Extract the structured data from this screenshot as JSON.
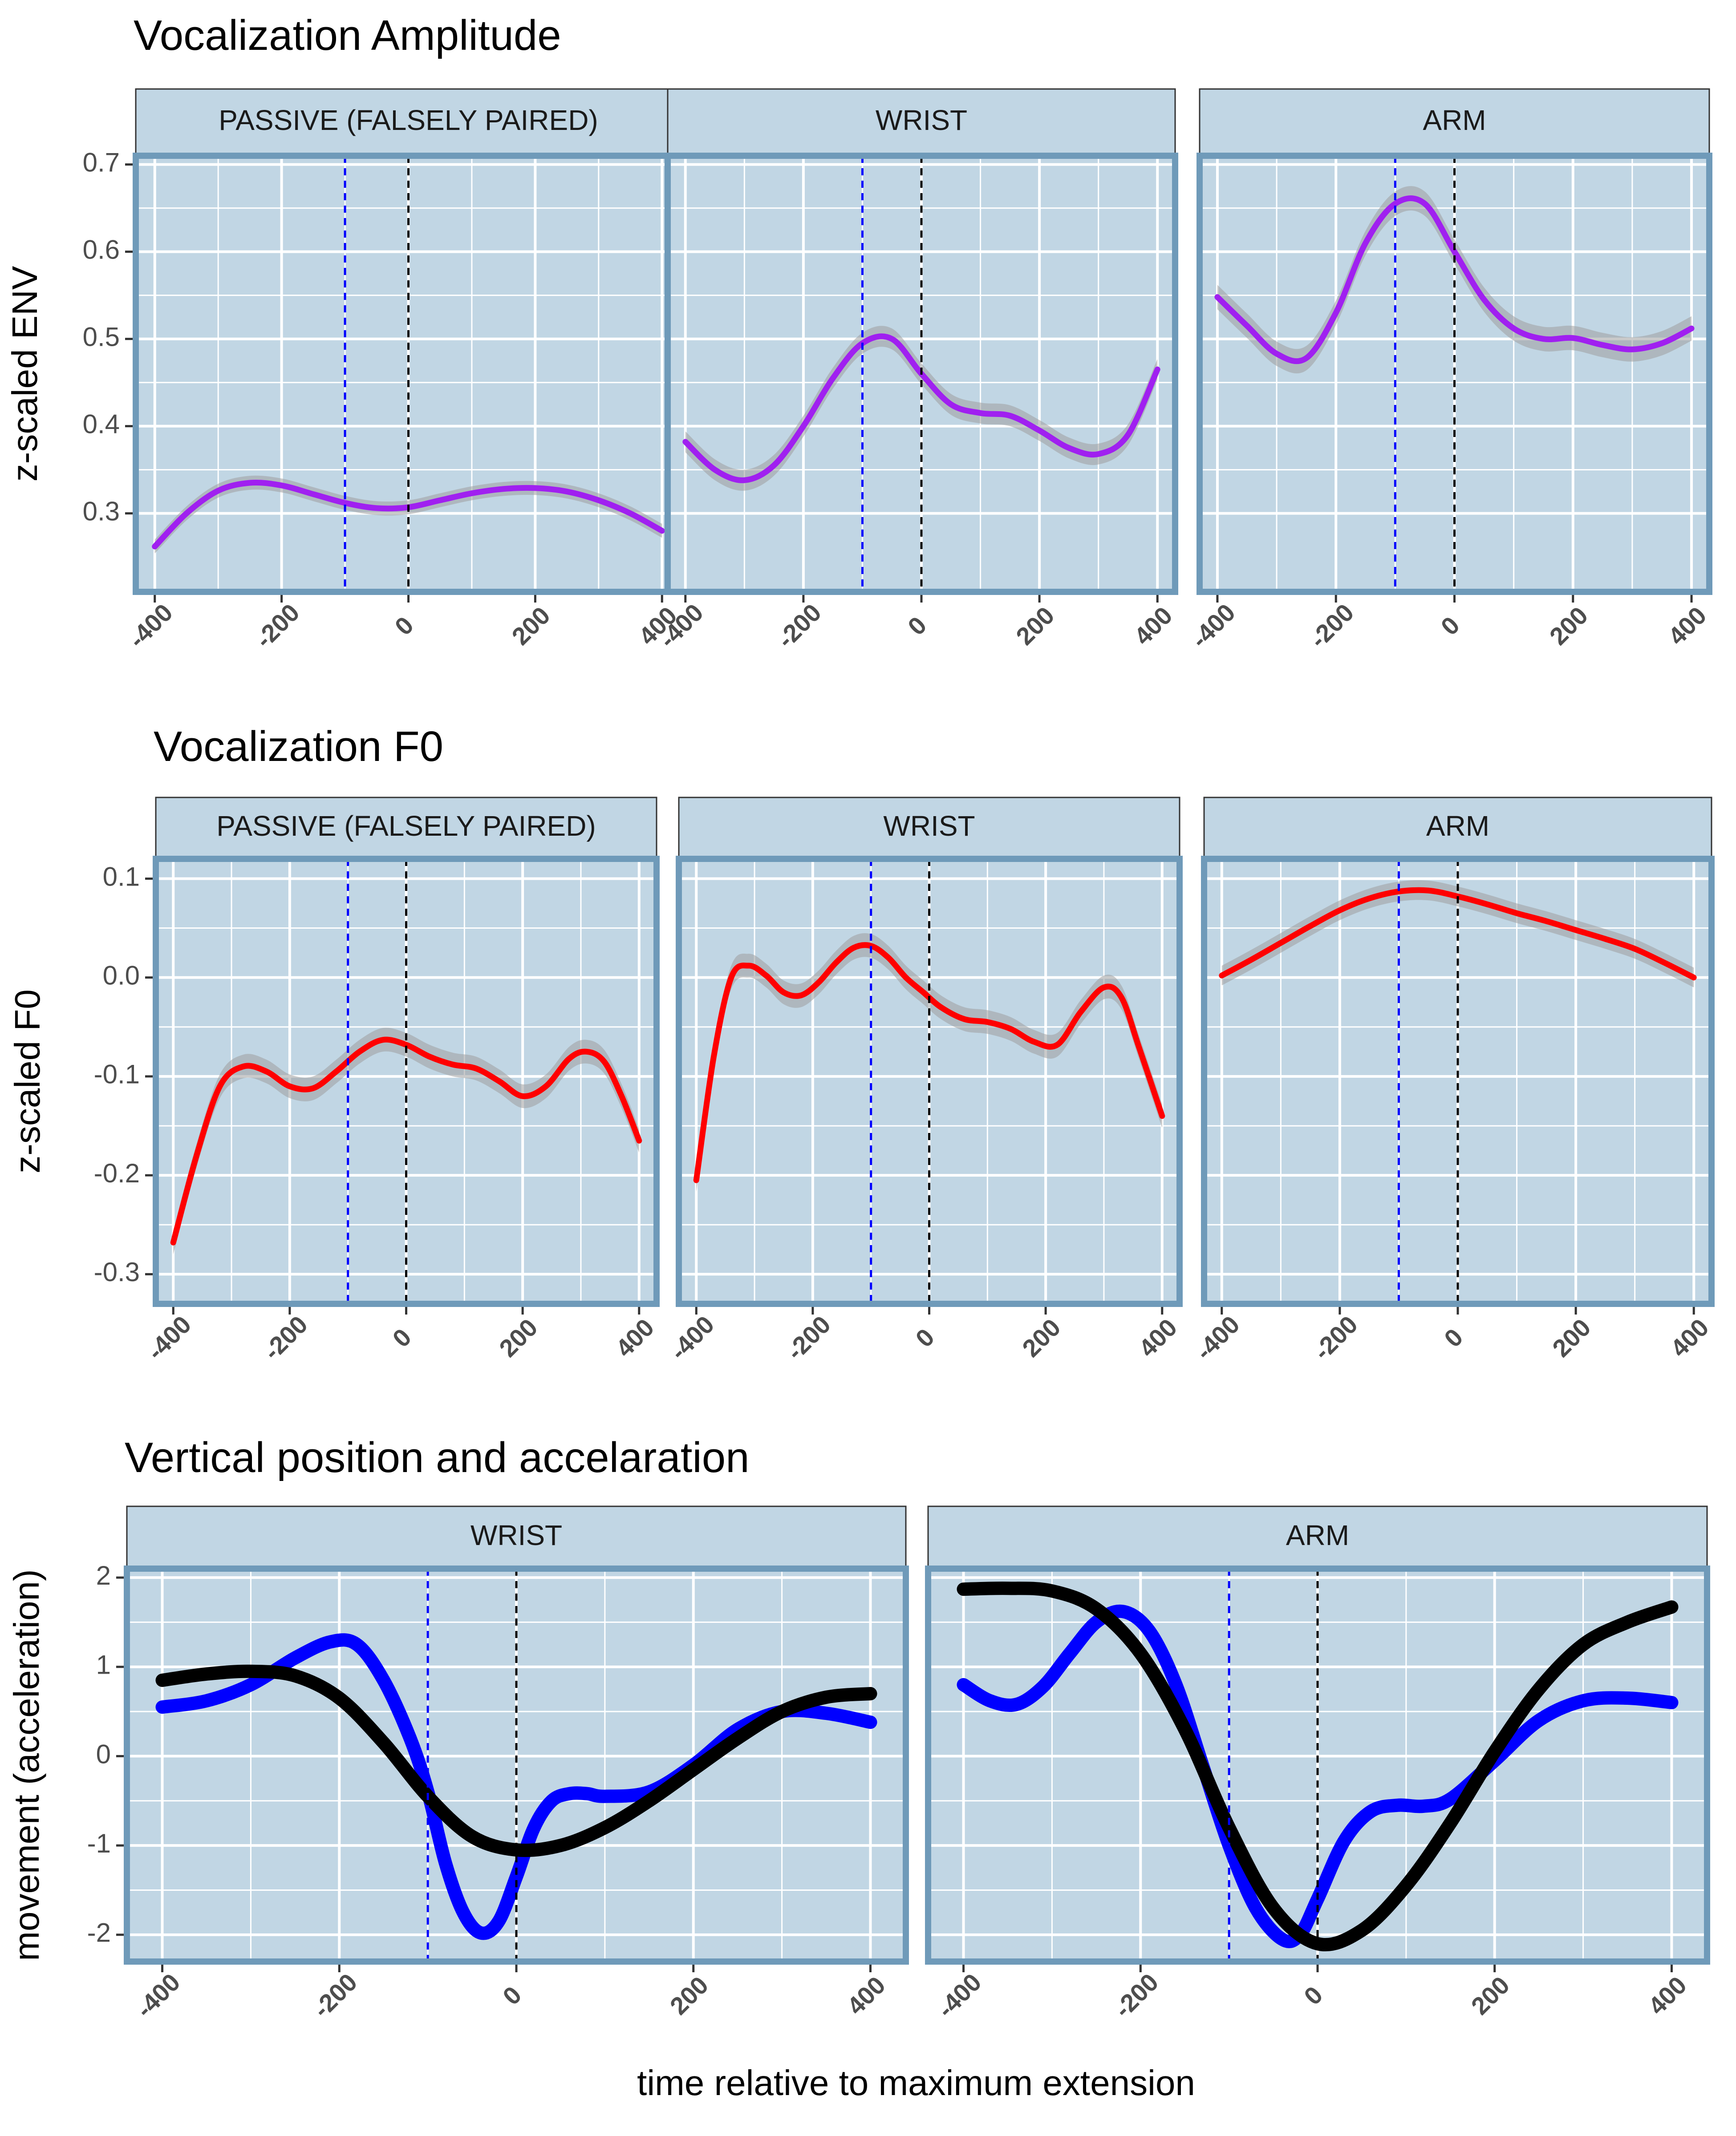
{
  "figure": {
    "xlabel": "time relative to maximum extension"
  },
  "colors": {
    "panel_bg": "#c1d6e4",
    "panel_border": "#6f9ab9",
    "strip_bg": "#c1d6e4",
    "grid": "#ffffff",
    "ribbon": "#9e9e9e",
    "envelope_line": "#a020f0",
    "f0_line": "#ff0000",
    "acceleration_line": "#0000ff",
    "position_line": "#000000",
    "marker_max_extension": "#000000",
    "marker_offset": "#0000ff"
  },
  "chart_data": [
    {
      "type": "line",
      "title": "Vocalization Amplitude",
      "ylabel": "z-scaled ENV",
      "xlabel": "",
      "xlim": [
        -430,
        430
      ],
      "ylim": [
        0.21,
        0.71
      ],
      "x_ticks": [
        -400,
        -200,
        0,
        200,
        400
      ],
      "y_ticks": [
        0.3,
        0.4,
        0.5,
        0.6,
        0.7
      ],
      "y_tick_labels": [
        "0.3",
        "0.4",
        "0.5",
        "0.6",
        "0.7"
      ],
      "vertical_lines": [
        {
          "x": -100,
          "color": "blue",
          "style": "dashed"
        },
        {
          "x": 0,
          "color": "black",
          "style": "dashed"
        }
      ],
      "grid": true,
      "facets": [
        {
          "label": "PASSIVE (FALSELY PAIRED)",
          "series": [
            {
              "color": "purple",
              "ribbon": 0.008,
              "x": [
                -400,
                -350,
                -300,
                -250,
                -200,
                -150,
                -100,
                -50,
                0,
                50,
                100,
                150,
                200,
                250,
                300,
                350,
                400
              ],
              "y": [
                0.262,
                0.3,
                0.326,
                0.335,
                0.332,
                0.322,
                0.312,
                0.306,
                0.307,
                0.315,
                0.323,
                0.328,
                0.329,
                0.325,
                0.315,
                0.3,
                0.28
              ]
            }
          ]
        },
        {
          "label": "WRIST",
          "series": [
            {
              "color": "purple",
              "ribbon": 0.012,
              "x": [
                -400,
                -350,
                -300,
                -250,
                -200,
                -150,
                -100,
                -50,
                0,
                50,
                100,
                150,
                200,
                250,
                300,
                350,
                400
              ],
              "y": [
                0.382,
                0.35,
                0.338,
                0.355,
                0.4,
                0.455,
                0.495,
                0.5,
                0.46,
                0.425,
                0.415,
                0.412,
                0.395,
                0.375,
                0.368,
                0.39,
                0.465
              ]
            }
          ]
        },
        {
          "label": "ARM",
          "series": [
            {
              "color": "purple",
              "ribbon": 0.014,
              "x": [
                -400,
                -350,
                -300,
                -250,
                -200,
                -150,
                -100,
                -50,
                0,
                50,
                100,
                150,
                200,
                250,
                300,
                350,
                400
              ],
              "y": [
                0.548,
                0.515,
                0.483,
                0.478,
                0.53,
                0.61,
                0.655,
                0.655,
                0.6,
                0.545,
                0.512,
                0.5,
                0.501,
                0.493,
                0.488,
                0.495,
                0.512
              ]
            }
          ]
        }
      ]
    },
    {
      "type": "line",
      "title": "Vocalization F0",
      "ylabel": "z-scaled F0",
      "xlabel": "",
      "xlim": [
        -430,
        430
      ],
      "ylim": [
        -0.33,
        0.12
      ],
      "x_ticks": [
        -400,
        -200,
        0,
        200,
        400
      ],
      "y_ticks": [
        -0.3,
        -0.2,
        -0.1,
        0.0,
        0.1
      ],
      "y_tick_labels": [
        "-0.3",
        "-0.2",
        "-0.1",
        "0.0",
        "0.1"
      ],
      "vertical_lines": [
        {
          "x": -100,
          "color": "blue",
          "style": "dashed"
        },
        {
          "x": 0,
          "color": "black",
          "style": "dashed"
        }
      ],
      "grid": true,
      "facets": [
        {
          "label": "PASSIVE (FALSELY PAIRED)",
          "series": [
            {
              "color": "red",
              "ribbon": 0.012,
              "x": [
                -400,
                -360,
                -320,
                -280,
                -240,
                -200,
                -160,
                -120,
                -80,
                -40,
                0,
                40,
                80,
                120,
                160,
                200,
                240,
                280,
                310,
                340,
                370,
                400
              ],
              "y": [
                -0.268,
                -0.18,
                -0.11,
                -0.09,
                -0.095,
                -0.11,
                -0.112,
                -0.095,
                -0.075,
                -0.063,
                -0.068,
                -0.08,
                -0.088,
                -0.092,
                -0.105,
                -0.12,
                -0.11,
                -0.082,
                -0.075,
                -0.085,
                -0.12,
                -0.165
              ]
            }
          ]
        },
        {
          "label": "WRIST",
          "series": [
            {
              "color": "red",
              "ribbon": 0.012,
              "x": [
                -400,
                -370,
                -340,
                -310,
                -280,
                -250,
                -220,
                -190,
                -160,
                -130,
                -100,
                -70,
                -40,
                -10,
                20,
                60,
                100,
                140,
                180,
                220,
                260,
                300,
                330,
                360,
                400
              ],
              "y": [
                -0.205,
                -0.08,
                0.0,
                0.012,
                0.002,
                -0.015,
                -0.018,
                -0.005,
                0.015,
                0.03,
                0.032,
                0.02,
                0.0,
                -0.015,
                -0.03,
                -0.042,
                -0.045,
                -0.052,
                -0.065,
                -0.068,
                -0.035,
                -0.01,
                -0.02,
                -0.07,
                -0.14
              ]
            }
          ]
        },
        {
          "label": "ARM",
          "series": [
            {
              "color": "red",
              "ribbon": 0.01,
              "x": [
                -400,
                -350,
                -300,
                -250,
                -200,
                -150,
                -100,
                -50,
                0,
                50,
                100,
                150,
                200,
                250,
                300,
                350,
                400
              ],
              "y": [
                0.002,
                0.018,
                0.035,
                0.052,
                0.068,
                0.08,
                0.087,
                0.088,
                0.082,
                0.074,
                0.065,
                0.057,
                0.048,
                0.039,
                0.029,
                0.015,
                0.0
              ]
            }
          ]
        }
      ]
    },
    {
      "type": "line",
      "title": "Vertical position and accelaration",
      "ylabel": "movement (acceleration)",
      "xlabel": "time relative to maximum extension",
      "xlim": [
        -440,
        440
      ],
      "ylim": [
        -2.3,
        2.1
      ],
      "x_ticks": [
        -400,
        -200,
        0,
        200,
        400
      ],
      "y_ticks": [
        -2,
        -1,
        0,
        1,
        2
      ],
      "y_tick_labels": [
        "-2",
        "-1",
        "0",
        "1",
        "2"
      ],
      "vertical_lines": [
        {
          "x": -100,
          "color": "blue",
          "style": "dashed"
        },
        {
          "x": 0,
          "color": "black",
          "style": "dashed"
        }
      ],
      "grid": true,
      "facets": [
        {
          "label": "WRIST",
          "series": [
            {
              "color": "blue",
              "x": [
                -400,
                -350,
                -300,
                -250,
                -210,
                -180,
                -150,
                -120,
                -100,
                -80,
                -60,
                -40,
                -20,
                0,
                20,
                40,
                60,
                80,
                100,
                150,
                200,
                250,
                300,
                350,
                400
              ],
              "y": [
                0.55,
                0.62,
                0.8,
                1.1,
                1.28,
                1.25,
                0.85,
                0.2,
                -0.4,
                -1.2,
                -1.75,
                -1.98,
                -1.85,
                -1.35,
                -0.8,
                -0.5,
                -0.42,
                -0.42,
                -0.45,
                -0.4,
                -0.1,
                0.3,
                0.5,
                0.48,
                0.38
              ]
            },
            {
              "color": "black",
              "x": [
                -400,
                -350,
                -300,
                -250,
                -200,
                -150,
                -100,
                -50,
                0,
                50,
                100,
                150,
                200,
                250,
                300,
                350,
                400
              ],
              "y": [
                0.85,
                0.92,
                0.95,
                0.9,
                0.65,
                0.15,
                -0.45,
                -0.9,
                -1.05,
                -1.0,
                -0.8,
                -0.5,
                -0.15,
                0.2,
                0.5,
                0.66,
                0.7
              ]
            }
          ]
        },
        {
          "label": "ARM",
          "series": [
            {
              "color": "blue",
              "x": [
                -400,
                -370,
                -340,
                -310,
                -280,
                -250,
                -220,
                -190,
                -160,
                -130,
                -100,
                -70,
                -40,
                -20,
                0,
                30,
                60,
                90,
                120,
                150,
                200,
                250,
                300,
                350,
                400
              ],
              "y": [
                0.8,
                0.62,
                0.58,
                0.78,
                1.15,
                1.5,
                1.62,
                1.4,
                0.8,
                -0.1,
                -1.0,
                -1.7,
                -2.05,
                -2.0,
                -1.6,
                -0.95,
                -0.62,
                -0.55,
                -0.56,
                -0.48,
                -0.05,
                0.4,
                0.62,
                0.65,
                0.6
              ]
            },
            {
              "color": "black",
              "x": [
                -400,
                -350,
                -300,
                -250,
                -200,
                -150,
                -100,
                -50,
                0,
                50,
                100,
                150,
                200,
                250,
                300,
                350,
                400
              ],
              "y": [
                1.87,
                1.88,
                1.85,
                1.65,
                1.15,
                0.3,
                -0.8,
                -1.7,
                -2.1,
                -1.95,
                -1.45,
                -0.75,
                0.05,
                0.75,
                1.25,
                1.5,
                1.67
              ]
            }
          ]
        }
      ]
    }
  ]
}
